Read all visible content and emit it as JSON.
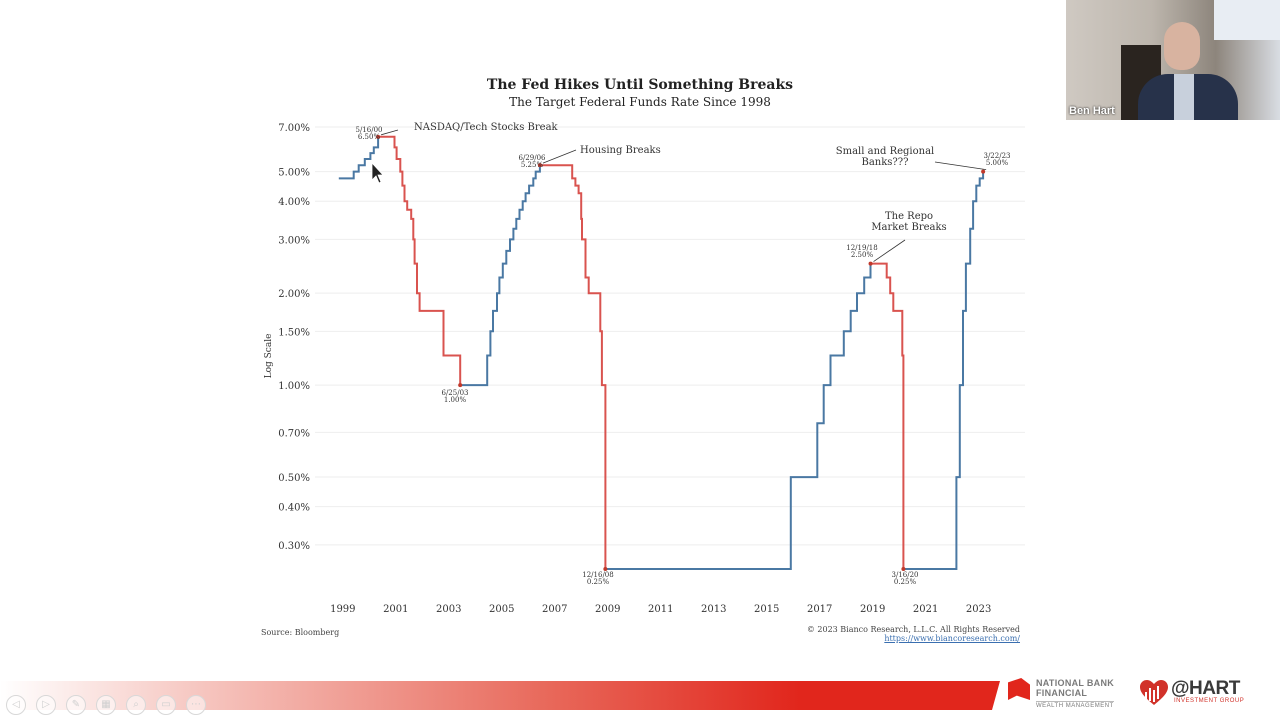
{
  "slide": {
    "source": "Source: Bloomberg",
    "copyright": "© 2023 Bianco Research, L.L.C. All Rights Reserved",
    "url": "https://www.biancoresearch.com/"
  },
  "chart_data": {
    "type": "line",
    "title": "The Fed Hikes Until Something Breaks",
    "subtitle": "The Target Federal Funds Rate Since 1998",
    "ylabel": "Log Scale",
    "y_scale": "log",
    "ylim": [
      0.25,
      7.0
    ],
    "y_ticks": [
      {
        "v": 7.0,
        "label": "7.00%"
      },
      {
        "v": 5.0,
        "label": "5.00%"
      },
      {
        "v": 4.0,
        "label": "4.00%"
      },
      {
        "v": 3.0,
        "label": "3.00%"
      },
      {
        "v": 2.0,
        "label": "2.00%"
      },
      {
        "v": 1.5,
        "label": "1.50%"
      },
      {
        "v": 1.0,
        "label": "1.00%"
      },
      {
        "v": 0.7,
        "label": "0.70%"
      },
      {
        "v": 0.5,
        "label": "0.50%"
      },
      {
        "v": 0.4,
        "label": "0.40%"
      },
      {
        "v": 0.3,
        "label": "0.30%"
      }
    ],
    "xlim": [
      1998.0,
      2024.8
    ],
    "x_ticks": [
      "1999",
      "2001",
      "2003",
      "2005",
      "2007",
      "2009",
      "2011",
      "2013",
      "2015",
      "2017",
      "2019",
      "2021",
      "2023"
    ],
    "grid": true,
    "colors": {
      "hiking": "#4a78a3",
      "cutting": "#d9534f",
      "grid": "#eeeeee"
    },
    "segments": [
      {
        "name": "hike",
        "color": "hiking",
        "points": [
          [
            1998.9,
            4.75
          ],
          [
            1999.46,
            4.75
          ],
          [
            1999.46,
            5.0
          ],
          [
            1999.65,
            5.0
          ],
          [
            1999.65,
            5.25
          ],
          [
            1999.88,
            5.25
          ],
          [
            1999.88,
            5.5
          ],
          [
            2000.09,
            5.5
          ],
          [
            2000.09,
            5.75
          ],
          [
            2000.22,
            5.75
          ],
          [
            2000.22,
            6.0
          ],
          [
            2000.38,
            6.0
          ],
          [
            2000.38,
            6.5
          ]
        ]
      },
      {
        "name": "cut",
        "color": "cutting",
        "points": [
          [
            2000.38,
            6.5
          ],
          [
            2001.0,
            6.5
          ],
          [
            2001.0,
            6.0
          ],
          [
            2001.08,
            6.0
          ],
          [
            2001.08,
            5.5
          ],
          [
            2001.22,
            5.5
          ],
          [
            2001.22,
            5.0
          ],
          [
            2001.3,
            5.0
          ],
          [
            2001.3,
            4.5
          ],
          [
            2001.38,
            4.5
          ],
          [
            2001.38,
            4.0
          ],
          [
            2001.48,
            4.0
          ],
          [
            2001.48,
            3.75
          ],
          [
            2001.63,
            3.75
          ],
          [
            2001.63,
            3.5
          ],
          [
            2001.71,
            3.5
          ],
          [
            2001.71,
            3.0
          ],
          [
            2001.76,
            3.0
          ],
          [
            2001.76,
            2.5
          ],
          [
            2001.85,
            2.5
          ],
          [
            2001.85,
            2.0
          ],
          [
            2001.95,
            2.0
          ],
          [
            2001.95,
            1.75
          ],
          [
            2002.85,
            1.75
          ],
          [
            2002.85,
            1.25
          ],
          [
            2003.48,
            1.25
          ],
          [
            2003.48,
            1.0
          ]
        ]
      },
      {
        "name": "hike",
        "color": "hiking",
        "points": [
          [
            2003.48,
            1.0
          ],
          [
            2004.5,
            1.0
          ],
          [
            2004.5,
            1.25
          ],
          [
            2004.62,
            1.25
          ],
          [
            2004.62,
            1.5
          ],
          [
            2004.72,
            1.5
          ],
          [
            2004.72,
            1.75
          ],
          [
            2004.87,
            1.75
          ],
          [
            2004.87,
            2.0
          ],
          [
            2004.96,
            2.0
          ],
          [
            2004.96,
            2.25
          ],
          [
            2005.09,
            2.25
          ],
          [
            2005.09,
            2.5
          ],
          [
            2005.22,
            2.5
          ],
          [
            2005.22,
            2.75
          ],
          [
            2005.36,
            2.75
          ],
          [
            2005.36,
            3.0
          ],
          [
            2005.49,
            3.0
          ],
          [
            2005.49,
            3.25
          ],
          [
            2005.6,
            3.25
          ],
          [
            2005.6,
            3.5
          ],
          [
            2005.72,
            3.5
          ],
          [
            2005.72,
            3.75
          ],
          [
            2005.84,
            3.75
          ],
          [
            2005.84,
            4.0
          ],
          [
            2005.95,
            4.0
          ],
          [
            2005.95,
            4.25
          ],
          [
            2006.08,
            4.25
          ],
          [
            2006.08,
            4.5
          ],
          [
            2006.24,
            4.5
          ],
          [
            2006.24,
            4.75
          ],
          [
            2006.33,
            4.75
          ],
          [
            2006.33,
            5.0
          ],
          [
            2006.49,
            5.0
          ],
          [
            2006.49,
            5.25
          ]
        ]
      },
      {
        "name": "cut",
        "color": "cutting",
        "points": [
          [
            2006.49,
            5.25
          ],
          [
            2007.71,
            5.25
          ],
          [
            2007.71,
            4.75
          ],
          [
            2007.83,
            4.75
          ],
          [
            2007.83,
            4.5
          ],
          [
            2007.95,
            4.5
          ],
          [
            2007.95,
            4.25
          ],
          [
            2008.05,
            4.25
          ],
          [
            2008.05,
            3.5
          ],
          [
            2008.08,
            3.5
          ],
          [
            2008.08,
            3.0
          ],
          [
            2008.21,
            3.0
          ],
          [
            2008.21,
            2.25
          ],
          [
            2008.33,
            2.25
          ],
          [
            2008.33,
            2.0
          ],
          [
            2008.77,
            2.0
          ],
          [
            2008.77,
            1.5
          ],
          [
            2008.83,
            1.5
          ],
          [
            2008.83,
            1.0
          ],
          [
            2008.96,
            1.0
          ],
          [
            2008.96,
            0.25
          ]
        ]
      },
      {
        "name": "hold",
        "color": "hiking",
        "points": [
          [
            2008.96,
            0.25
          ],
          [
            2015.96,
            0.25
          ],
          [
            2015.96,
            0.5
          ],
          [
            2016.96,
            0.5
          ],
          [
            2016.96,
            0.75
          ],
          [
            2017.2,
            0.75
          ],
          [
            2017.2,
            1.0
          ],
          [
            2017.46,
            1.0
          ],
          [
            2017.46,
            1.25
          ],
          [
            2017.96,
            1.25
          ],
          [
            2017.96,
            1.5
          ],
          [
            2018.22,
            1.5
          ],
          [
            2018.22,
            1.75
          ],
          [
            2018.46,
            1.75
          ],
          [
            2018.46,
            2.0
          ],
          [
            2018.73,
            2.0
          ],
          [
            2018.73,
            2.25
          ],
          [
            2018.97,
            2.25
          ],
          [
            2018.97,
            2.5
          ]
        ]
      },
      {
        "name": "cut",
        "color": "cutting",
        "points": [
          [
            2018.97,
            2.5
          ],
          [
            2019.58,
            2.5
          ],
          [
            2019.58,
            2.25
          ],
          [
            2019.71,
            2.25
          ],
          [
            2019.71,
            2.0
          ],
          [
            2019.83,
            2.0
          ],
          [
            2019.83,
            1.75
          ],
          [
            2020.17,
            1.75
          ],
          [
            2020.17,
            1.25
          ],
          [
            2020.21,
            1.25
          ],
          [
            2020.21,
            0.25
          ]
        ]
      },
      {
        "name": "hike",
        "color": "hiking",
        "points": [
          [
            2020.21,
            0.25
          ],
          [
            2022.21,
            0.25
          ],
          [
            2022.21,
            0.5
          ],
          [
            2022.34,
            0.5
          ],
          [
            2022.34,
            1.0
          ],
          [
            2022.46,
            1.0
          ],
          [
            2022.46,
            1.75
          ],
          [
            2022.57,
            1.75
          ],
          [
            2022.57,
            2.5
          ],
          [
            2022.73,
            2.5
          ],
          [
            2022.73,
            3.25
          ],
          [
            2022.84,
            3.25
          ],
          [
            2022.84,
            4.0
          ],
          [
            2022.96,
            4.0
          ],
          [
            2022.96,
            4.5
          ],
          [
            2023.09,
            4.5
          ],
          [
            2023.09,
            4.75
          ],
          [
            2023.22,
            4.75
          ],
          [
            2023.22,
            5.0
          ]
        ]
      }
    ],
    "annotations": [
      {
        "date": "5/16/00",
        "rate": "6.50%",
        "x": 2000.38,
        "y": 6.5,
        "label": "NASDAQ/Tech Stocks Break"
      },
      {
        "date": "6/29/06",
        "rate": "5.25%",
        "x": 2006.49,
        "y": 5.25,
        "label": "Housing Breaks"
      },
      {
        "date": "6/25/03",
        "rate": "1.00%",
        "x": 2003.48,
        "y": 1.0,
        "label": ""
      },
      {
        "date": "12/16/08",
        "rate": "0.25%",
        "x": 2008.96,
        "y": 0.25,
        "label": ""
      },
      {
        "date": "12/19/18",
        "rate": "2.50%",
        "x": 2018.97,
        "y": 2.5,
        "label": "The Repo\nMarket Breaks"
      },
      {
        "date": "3/16/20",
        "rate": "0.25%",
        "x": 2020.21,
        "y": 0.25,
        "label": ""
      },
      {
        "date": "3/22/23",
        "rate": "5.00%",
        "x": 2023.22,
        "y": 5.0,
        "label": "Small and Regional\nBanks???"
      }
    ]
  },
  "video": {
    "name": "Ben Hart"
  },
  "brands": {
    "nbf_line1": "NATIONAL BANK",
    "nbf_line2": "FINANCIAL",
    "nbf_line3": "WEALTH MANAGEMENT",
    "hart_line1": "@HART",
    "hart_line2": "INVESTMENT GROUP"
  },
  "controls": [
    {
      "icon": "prev-slide-icon",
      "glyph": "◁"
    },
    {
      "icon": "next-slide-icon",
      "glyph": "▷"
    },
    {
      "icon": "pen-icon",
      "glyph": "✎"
    },
    {
      "icon": "slides-grid-icon",
      "glyph": "▦"
    },
    {
      "icon": "zoom-icon",
      "glyph": "⌕"
    },
    {
      "icon": "subtitles-icon",
      "glyph": "▭"
    },
    {
      "icon": "more-options-icon",
      "glyph": "⋯"
    }
  ]
}
